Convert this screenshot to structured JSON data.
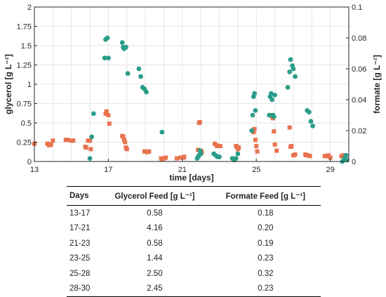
{
  "chart_data": {
    "type": "scatter",
    "xlabel": "time [days]",
    "ylabel_left": "glycerol [g L⁻¹]",
    "ylabel_right": "formate [g L⁻¹]",
    "xlim": [
      13,
      30
    ],
    "ylim_left": [
      0,
      2
    ],
    "ylim_right": [
      0,
      0.1
    ],
    "xticks": [
      13,
      17,
      21,
      25,
      29
    ],
    "yticks_left": [
      "0",
      "0.25",
      "0.5",
      "0.75",
      "1",
      "1.25",
      "1.5",
      "1.75",
      "2"
    ],
    "yticks_right": [
      "0",
      "0.02",
      "0.04",
      "0.06",
      "0.08",
      "0.1"
    ],
    "grid": true,
    "colors": {
      "glycerol": "#e8734f",
      "formate": "#2a9d8a"
    },
    "series": [
      {
        "axis": "left",
        "marker": "square",
        "color": "#e8734f",
        "points": [
          [
            13.0,
            0.23
          ],
          [
            13.7,
            0.23
          ],
          [
            13.8,
            0.21
          ],
          [
            13.9,
            0.22
          ],
          [
            14.0,
            0.27
          ],
          [
            14.7,
            0.28
          ],
          [
            14.8,
            0.28
          ],
          [
            15.0,
            0.27
          ],
          [
            15.1,
            0.27
          ],
          [
            15.75,
            0.19
          ],
          [
            15.8,
            0.18
          ],
          [
            15.9,
            0.27
          ],
          [
            16.0,
            0.27
          ],
          [
            16.05,
            0.16
          ],
          [
            16.85,
            0.62
          ],
          [
            16.9,
            0.65
          ],
          [
            17.0,
            0.6
          ],
          [
            17.05,
            0.49
          ],
          [
            17.75,
            0.33
          ],
          [
            17.8,
            0.32
          ],
          [
            17.85,
            0.28
          ],
          [
            17.9,
            0.25
          ],
          [
            17.95,
            0.18
          ],
          [
            18.0,
            0.16
          ],
          [
            18.95,
            0.13
          ],
          [
            19.0,
            0.13
          ],
          [
            19.1,
            0.12
          ],
          [
            19.2,
            0.13
          ],
          [
            19.85,
            0.04
          ],
          [
            19.9,
            0.03
          ],
          [
            20.0,
            0.04
          ],
          [
            20.1,
            0.05
          ],
          [
            20.7,
            0.04
          ],
          [
            20.9,
            0.05
          ],
          [
            21.05,
            0.05
          ],
          [
            21.1,
            0.06
          ],
          [
            21.85,
            0.15
          ],
          [
            21.9,
            0.5
          ],
          [
            21.95,
            0.51
          ],
          [
            22.0,
            0.14
          ],
          [
            22.05,
            0.12
          ],
          [
            22.75,
            0.23
          ],
          [
            22.85,
            0.21
          ],
          [
            22.9,
            0.2
          ],
          [
            23.05,
            0.2
          ],
          [
            23.9,
            0.2
          ],
          [
            23.95,
            0.19
          ],
          [
            24.0,
            0.16
          ],
          [
            24.05,
            0.18
          ],
          [
            24.85,
            0.38
          ],
          [
            24.9,
            0.42
          ],
          [
            24.95,
            0.28
          ],
          [
            25.0,
            0.2
          ],
          [
            25.05,
            0.13
          ],
          [
            25.8,
            0.6
          ],
          [
            25.85,
            0.58
          ],
          [
            25.9,
            0.56
          ],
          [
            25.95,
            0.39
          ],
          [
            26.0,
            0.22
          ],
          [
            26.1,
            0.14
          ],
          [
            26.8,
            0.44
          ],
          [
            26.85,
            0.19
          ],
          [
            26.9,
            0.2
          ],
          [
            27.0,
            0.08
          ],
          [
            27.1,
            0.09
          ],
          [
            27.65,
            0.09
          ],
          [
            27.7,
            0.08
          ],
          [
            27.8,
            0.08
          ],
          [
            27.9,
            0.07
          ],
          [
            28.7,
            0.07
          ],
          [
            28.8,
            0.07
          ],
          [
            28.9,
            0.08
          ],
          [
            29.0,
            0.05
          ],
          [
            29.6,
            0.07
          ],
          [
            29.7,
            0.08
          ],
          [
            29.75,
            0.05
          ],
          [
            29.8,
            0.06
          ]
        ]
      },
      {
        "axis": "right",
        "marker": "circle",
        "color": "#2a9d8a",
        "points": [
          [
            16.0,
            0.002
          ],
          [
            16.1,
            0.016
          ],
          [
            16.2,
            0.031
          ],
          [
            16.8,
            0.067
          ],
          [
            16.85,
            0.079
          ],
          [
            16.95,
            0.08
          ],
          [
            17.0,
            0.067
          ],
          [
            17.75,
            0.077
          ],
          [
            17.8,
            0.074
          ],
          [
            17.85,
            0.073
          ],
          [
            17.95,
            0.074
          ],
          [
            18.05,
            0.057
          ],
          [
            18.65,
            0.06
          ],
          [
            18.75,
            0.055
          ],
          [
            18.85,
            0.048
          ],
          [
            18.95,
            0.047
          ],
          [
            19.05,
            0.045
          ],
          [
            19.9,
            0.019
          ],
          [
            21.8,
            0.002
          ],
          [
            21.85,
            0.003
          ],
          [
            21.9,
            0.004
          ],
          [
            21.95,
            0.007
          ],
          [
            22.0,
            0.005
          ],
          [
            22.7,
            0.005
          ],
          [
            22.8,
            0.004
          ],
          [
            22.9,
            0.003
          ],
          [
            23.0,
            0.003
          ],
          [
            23.7,
            0.002
          ],
          [
            23.8,
            0.001
          ],
          [
            23.9,
            0.002
          ],
          [
            24.0,
            0.005
          ],
          [
            24.75,
            0.02
          ],
          [
            24.8,
            0.03
          ],
          [
            24.85,
            0.042
          ],
          [
            24.9,
            0.044
          ],
          [
            24.95,
            0.033
          ],
          [
            25.7,
            0.03
          ],
          [
            25.75,
            0.042
          ],
          [
            25.8,
            0.044
          ],
          [
            25.85,
            0.04
          ],
          [
            25.9,
            0.03
          ],
          [
            25.95,
            0.029
          ],
          [
            26.0,
            0.043
          ],
          [
            26.7,
            0.048
          ],
          [
            26.8,
            0.058
          ],
          [
            26.85,
            0.066
          ],
          [
            26.95,
            0.062
          ],
          [
            27.0,
            0.06
          ],
          [
            27.1,
            0.055
          ],
          [
            27.75,
            0.033
          ],
          [
            27.85,
            0.032
          ],
          [
            27.95,
            0.026
          ],
          [
            28.05,
            0.023
          ],
          [
            29.65,
            0.0
          ],
          [
            29.75,
            0.002
          ],
          [
            29.85,
            0.004
          ],
          [
            29.9,
            0.001
          ]
        ]
      }
    ]
  },
  "table": {
    "headers": [
      "Days",
      "Glycerol Feed [g L⁻¹]",
      "Formate Feed [g L⁻¹]"
    ],
    "rows": [
      [
        "13-17",
        "0.58",
        "0.18"
      ],
      [
        "17-21",
        "4.16",
        "0.20"
      ],
      [
        "21-23",
        "0.58",
        "0.19"
      ],
      [
        "23-25",
        "1.44",
        "0.23"
      ],
      [
        "25-28",
        "2.50",
        "0.32"
      ],
      [
        "28-30",
        "2.45",
        "0.23"
      ]
    ]
  }
}
